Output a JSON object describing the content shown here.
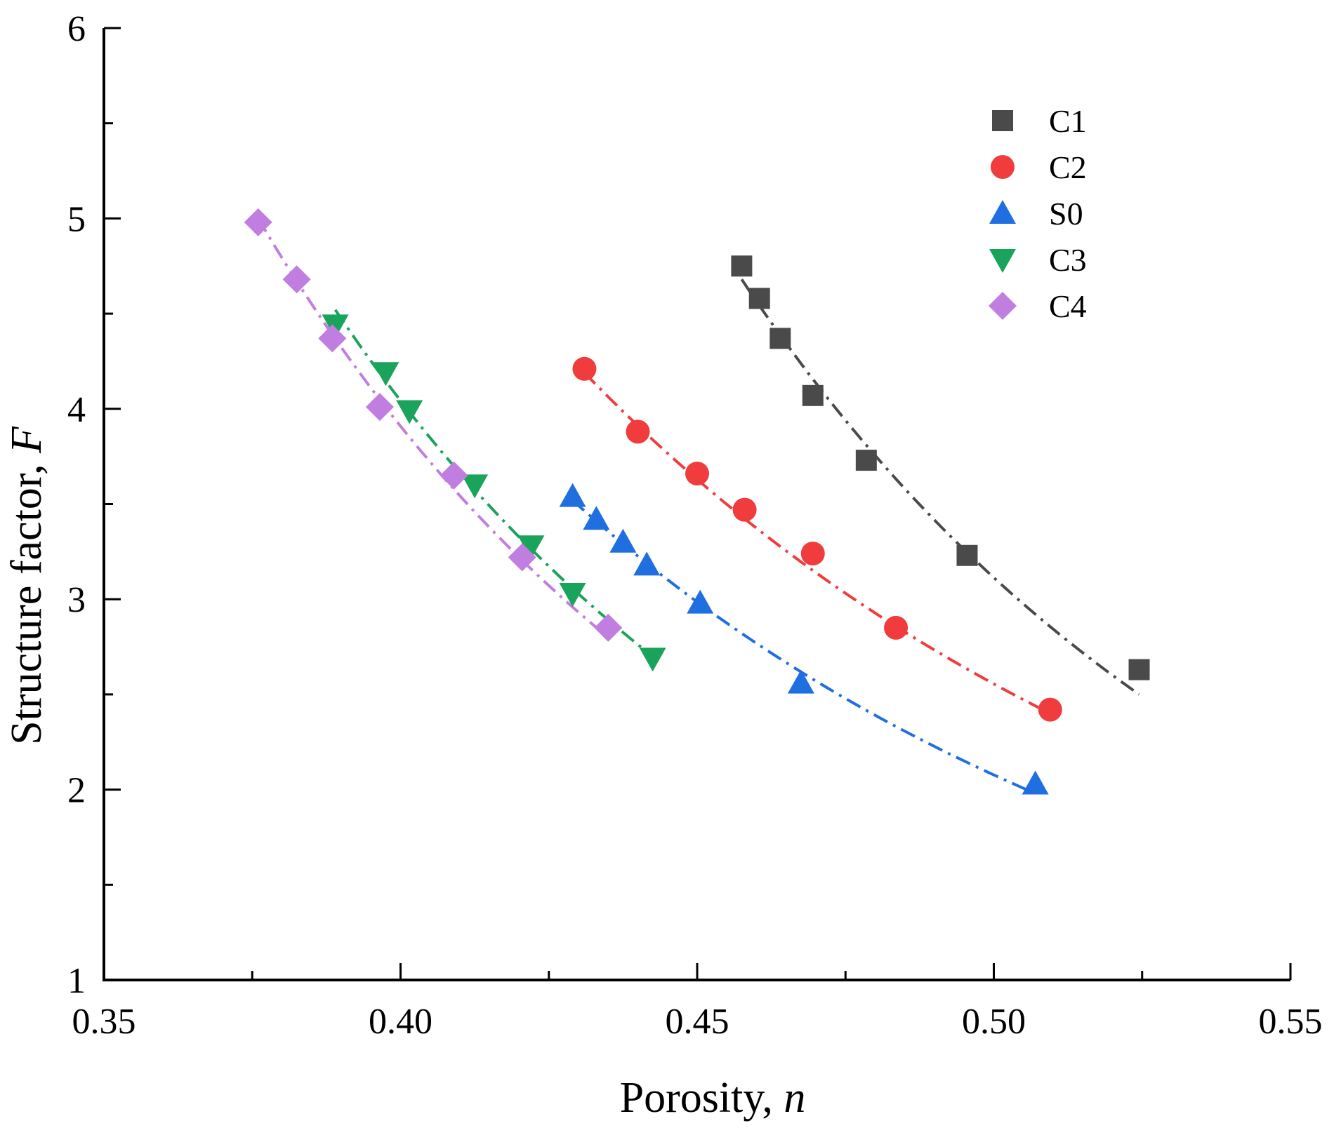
{
  "chart_data": {
    "type": "scatter",
    "title": "",
    "xlabel": "Porosity, ",
    "xlabel_var": "n",
    "ylabel": "Structure factor, ",
    "ylabel_var": "F",
    "xlim": [
      0.35,
      0.55
    ],
    "ylim": [
      1,
      6
    ],
    "xticks": [
      0.35,
      0.4,
      0.45,
      0.5,
      0.55
    ],
    "xtick_labels": [
      "0.35",
      "0.40",
      "0.45",
      "0.50",
      "0.55"
    ],
    "xminor": [
      0.375,
      0.425,
      0.475,
      0.525
    ],
    "yticks": [
      1,
      2,
      3,
      4,
      5,
      6
    ],
    "ytick_labels": [
      "1",
      "2",
      "3",
      "4",
      "5",
      "6"
    ],
    "yminor": [
      1.5,
      2.5,
      3.5,
      4.5,
      5.5
    ],
    "legend_position": "top-right",
    "series": [
      {
        "name": "C1",
        "marker": "square",
        "color": "#4a4a4a",
        "x": [
          0.4575,
          0.4605,
          0.464,
          0.4695,
          0.4785,
          0.4955,
          0.5245
        ],
        "y": [
          4.75,
          4.58,
          4.37,
          4.07,
          3.73,
          3.23,
          2.63
        ],
        "fit": {
          "x0": 0.4575,
          "y0": 4.68,
          "x1": 0.5245,
          "y1": 2.5
        }
      },
      {
        "name": "C2",
        "marker": "circle",
        "color": "#f03c3c",
        "x": [
          0.431,
          0.44,
          0.45,
          0.458,
          0.4695,
          0.4835,
          0.5095
        ],
        "y": [
          4.21,
          3.88,
          3.66,
          3.47,
          3.24,
          2.85,
          2.42
        ],
        "fit": {
          "x0": 0.431,
          "y0": 4.19,
          "x1": 0.5095,
          "y1": 2.4
        }
      },
      {
        "name": "S0",
        "marker": "triangle-up",
        "color": "#1f6fe0",
        "x": [
          0.429,
          0.433,
          0.4375,
          0.4415,
          0.4505,
          0.4675,
          0.507
        ],
        "y": [
          3.54,
          3.42,
          3.3,
          3.18,
          2.98,
          2.56,
          2.03
        ],
        "fit": {
          "x0": 0.429,
          "y0": 3.52,
          "x1": 0.507,
          "y1": 1.98
        }
      },
      {
        "name": "C3",
        "marker": "triangle-down",
        "color": "#1aa35a",
        "x": [
          0.389,
          0.3975,
          0.4015,
          0.4125,
          0.422,
          0.429,
          0.4425
        ],
        "y": [
          4.44,
          4.19,
          3.99,
          3.6,
          3.28,
          3.03,
          2.69
        ],
        "fit": {
          "x0": 0.389,
          "y0": 4.52,
          "x1": 0.4425,
          "y1": 2.7
        }
      },
      {
        "name": "C4",
        "marker": "diamond",
        "color": "#c07fe0",
        "x": [
          0.376,
          0.3825,
          0.3885,
          0.3965,
          0.409,
          0.4205,
          0.435
        ],
        "y": [
          4.98,
          4.68,
          4.37,
          4.01,
          3.65,
          3.22,
          2.85
        ],
        "fit": {
          "x0": 0.376,
          "y0": 5.0,
          "x1": 0.435,
          "y1": 2.8
        }
      }
    ]
  }
}
